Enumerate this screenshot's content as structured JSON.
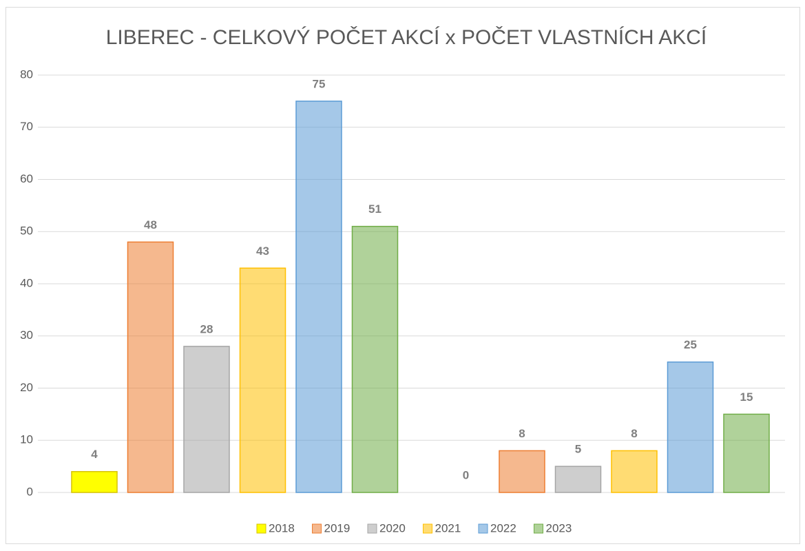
{
  "chart_data": {
    "type": "bar",
    "title": "LIBEREC - CELKOVÝ POČET AKCÍ x POČET VLASTNÍCH AKCÍ",
    "categories": [
      null,
      null
    ],
    "series": [
      {
        "name": "2018",
        "color": "#ffff00",
        "values": [
          4,
          0
        ]
      },
      {
        "name": "2019",
        "color": "#ed7d31",
        "values": [
          48,
          8
        ]
      },
      {
        "name": "2020",
        "color": "#a5a5a5",
        "values": [
          28,
          5
        ]
      },
      {
        "name": "2021",
        "color": "#ffc000",
        "values": [
          43,
          8
        ]
      },
      {
        "name": "2022",
        "color": "#5b9bd5",
        "values": [
          75,
          25
        ]
      },
      {
        "name": "2023",
        "color": "#70ad47",
        "values": [
          51,
          15
        ]
      }
    ],
    "ylim": [
      0,
      80
    ],
    "yticks": [
      0,
      10,
      20,
      30,
      40,
      50,
      60,
      70,
      80
    ],
    "grid": true,
    "legend": "bottom"
  }
}
